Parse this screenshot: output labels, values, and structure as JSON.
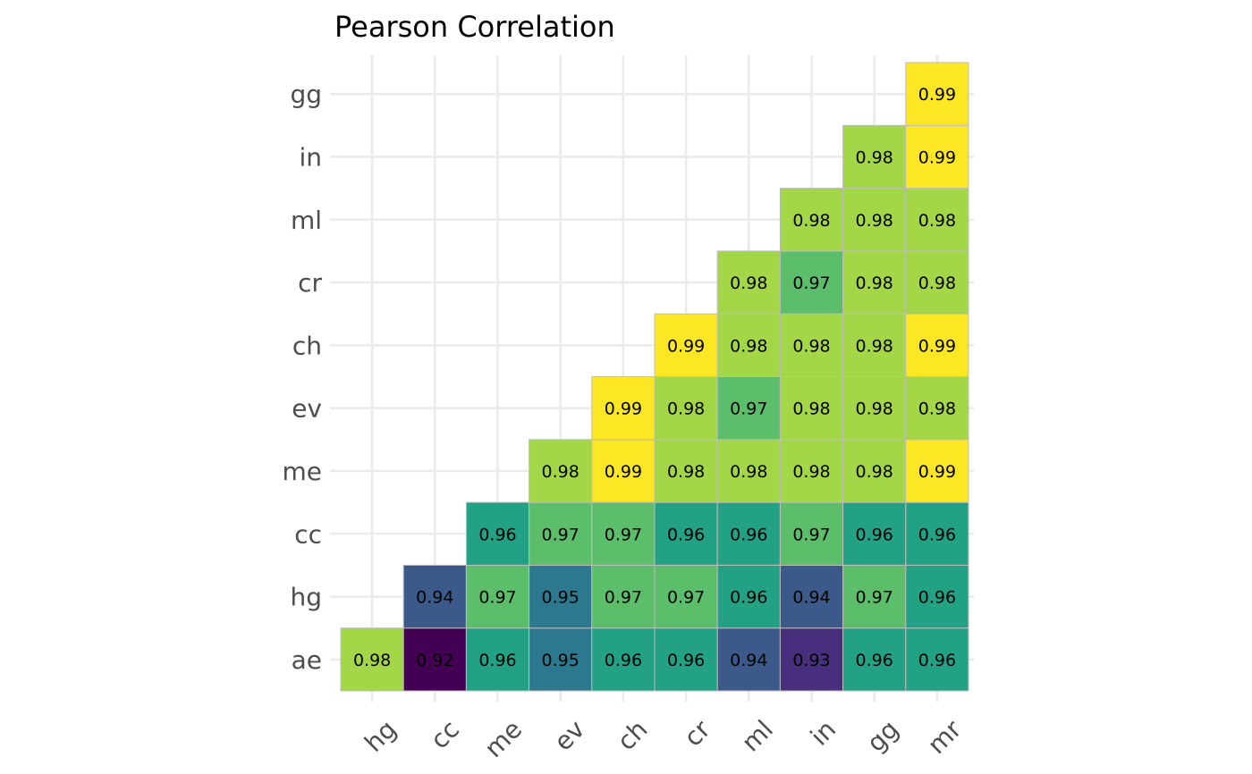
{
  "chart_data": {
    "type": "heatmap",
    "title": "Pearson Correlation",
    "x_categories": [
      "hg",
      "cc",
      "me",
      "ev",
      "ch",
      "cr",
      "ml",
      "in",
      "gg",
      "mr"
    ],
    "y_categories": [
      "ae",
      "hg",
      "cc",
      "me",
      "ev",
      "ch",
      "cr",
      "ml",
      "in",
      "gg"
    ],
    "value_range": [
      0.92,
      0.99
    ],
    "colormap": "viridis",
    "cells": [
      {
        "x": "hg",
        "y": "ae",
        "value": 0.98,
        "label": "0.98"
      },
      {
        "x": "cc",
        "y": "ae",
        "value": 0.92,
        "label": "0.92"
      },
      {
        "x": "me",
        "y": "ae",
        "value": 0.96,
        "label": "0.96"
      },
      {
        "x": "ev",
        "y": "ae",
        "value": 0.95,
        "label": "0.95"
      },
      {
        "x": "ch",
        "y": "ae",
        "value": 0.96,
        "label": "0.96"
      },
      {
        "x": "cr",
        "y": "ae",
        "value": 0.96,
        "label": "0.96"
      },
      {
        "x": "ml",
        "y": "ae",
        "value": 0.94,
        "label": "0.94"
      },
      {
        "x": "in",
        "y": "ae",
        "value": 0.93,
        "label": "0.93"
      },
      {
        "x": "gg",
        "y": "ae",
        "value": 0.96,
        "label": "0.96"
      },
      {
        "x": "mr",
        "y": "ae",
        "value": 0.96,
        "label": "0.96"
      },
      {
        "x": "cc",
        "y": "hg",
        "value": 0.94,
        "label": "0.94"
      },
      {
        "x": "me",
        "y": "hg",
        "value": 0.97,
        "label": "0.97"
      },
      {
        "x": "ev",
        "y": "hg",
        "value": 0.95,
        "label": "0.95"
      },
      {
        "x": "ch",
        "y": "hg",
        "value": 0.97,
        "label": "0.97"
      },
      {
        "x": "cr",
        "y": "hg",
        "value": 0.97,
        "label": "0.97"
      },
      {
        "x": "ml",
        "y": "hg",
        "value": 0.96,
        "label": "0.96"
      },
      {
        "x": "in",
        "y": "hg",
        "value": 0.94,
        "label": "0.94"
      },
      {
        "x": "gg",
        "y": "hg",
        "value": 0.97,
        "label": "0.97"
      },
      {
        "x": "mr",
        "y": "hg",
        "value": 0.96,
        "label": "0.96"
      },
      {
        "x": "me",
        "y": "cc",
        "value": 0.96,
        "label": "0.96"
      },
      {
        "x": "ev",
        "y": "cc",
        "value": 0.97,
        "label": "0.97"
      },
      {
        "x": "ch",
        "y": "cc",
        "value": 0.97,
        "label": "0.97"
      },
      {
        "x": "cr",
        "y": "cc",
        "value": 0.96,
        "label": "0.96"
      },
      {
        "x": "ml",
        "y": "cc",
        "value": 0.96,
        "label": "0.96"
      },
      {
        "x": "in",
        "y": "cc",
        "value": 0.97,
        "label": "0.97"
      },
      {
        "x": "gg",
        "y": "cc",
        "value": 0.96,
        "label": "0.96"
      },
      {
        "x": "mr",
        "y": "cc",
        "value": 0.96,
        "label": "0.96"
      },
      {
        "x": "ev",
        "y": "me",
        "value": 0.98,
        "label": "0.98"
      },
      {
        "x": "ch",
        "y": "me",
        "value": 0.99,
        "label": "0.99"
      },
      {
        "x": "cr",
        "y": "me",
        "value": 0.98,
        "label": "0.98"
      },
      {
        "x": "ml",
        "y": "me",
        "value": 0.98,
        "label": "0.98"
      },
      {
        "x": "in",
        "y": "me",
        "value": 0.98,
        "label": "0.98"
      },
      {
        "x": "gg",
        "y": "me",
        "value": 0.98,
        "label": "0.98"
      },
      {
        "x": "mr",
        "y": "me",
        "value": 0.99,
        "label": "0.99"
      },
      {
        "x": "ch",
        "y": "ev",
        "value": 0.99,
        "label": "0.99"
      },
      {
        "x": "cr",
        "y": "ev",
        "value": 0.98,
        "label": "0.98"
      },
      {
        "x": "ml",
        "y": "ev",
        "value": 0.97,
        "label": "0.97"
      },
      {
        "x": "in",
        "y": "ev",
        "value": 0.98,
        "label": "0.98"
      },
      {
        "x": "gg",
        "y": "ev",
        "value": 0.98,
        "label": "0.98"
      },
      {
        "x": "mr",
        "y": "ev",
        "value": 0.98,
        "label": "0.98"
      },
      {
        "x": "cr",
        "y": "ch",
        "value": 0.99,
        "label": "0.99"
      },
      {
        "x": "ml",
        "y": "ch",
        "value": 0.98,
        "label": "0.98"
      },
      {
        "x": "in",
        "y": "ch",
        "value": 0.98,
        "label": "0.98"
      },
      {
        "x": "gg",
        "y": "ch",
        "value": 0.98,
        "label": "0.98"
      },
      {
        "x": "mr",
        "y": "ch",
        "value": 0.99,
        "label": "0.99"
      },
      {
        "x": "ml",
        "y": "cr",
        "value": 0.98,
        "label": "0.98"
      },
      {
        "x": "in",
        "y": "cr",
        "value": 0.97,
        "label": "0.97"
      },
      {
        "x": "gg",
        "y": "cr",
        "value": 0.98,
        "label": "0.98"
      },
      {
        "x": "mr",
        "y": "cr",
        "value": 0.98,
        "label": "0.98"
      },
      {
        "x": "in",
        "y": "ml",
        "value": 0.98,
        "label": "0.98"
      },
      {
        "x": "gg",
        "y": "ml",
        "value": 0.98,
        "label": "0.98"
      },
      {
        "x": "mr",
        "y": "ml",
        "value": 0.98,
        "label": "0.98"
      },
      {
        "x": "gg",
        "y": "in",
        "value": 0.98,
        "label": "0.98"
      },
      {
        "x": "mr",
        "y": "in",
        "value": 0.99,
        "label": "0.99"
      },
      {
        "x": "mr",
        "y": "gg",
        "value": 0.99,
        "label": "0.99"
      }
    ],
    "colors": {
      "0.92": "#440154",
      "0.93": "#472f7d",
      "0.94": "#3b5a8a",
      "0.95": "#2c788e",
      "0.96": "#22a185",
      "0.97": "#5cbe6a",
      "0.98": "#a3d748",
      "0.99": "#fde725"
    },
    "grid": true,
    "legend": "none"
  }
}
